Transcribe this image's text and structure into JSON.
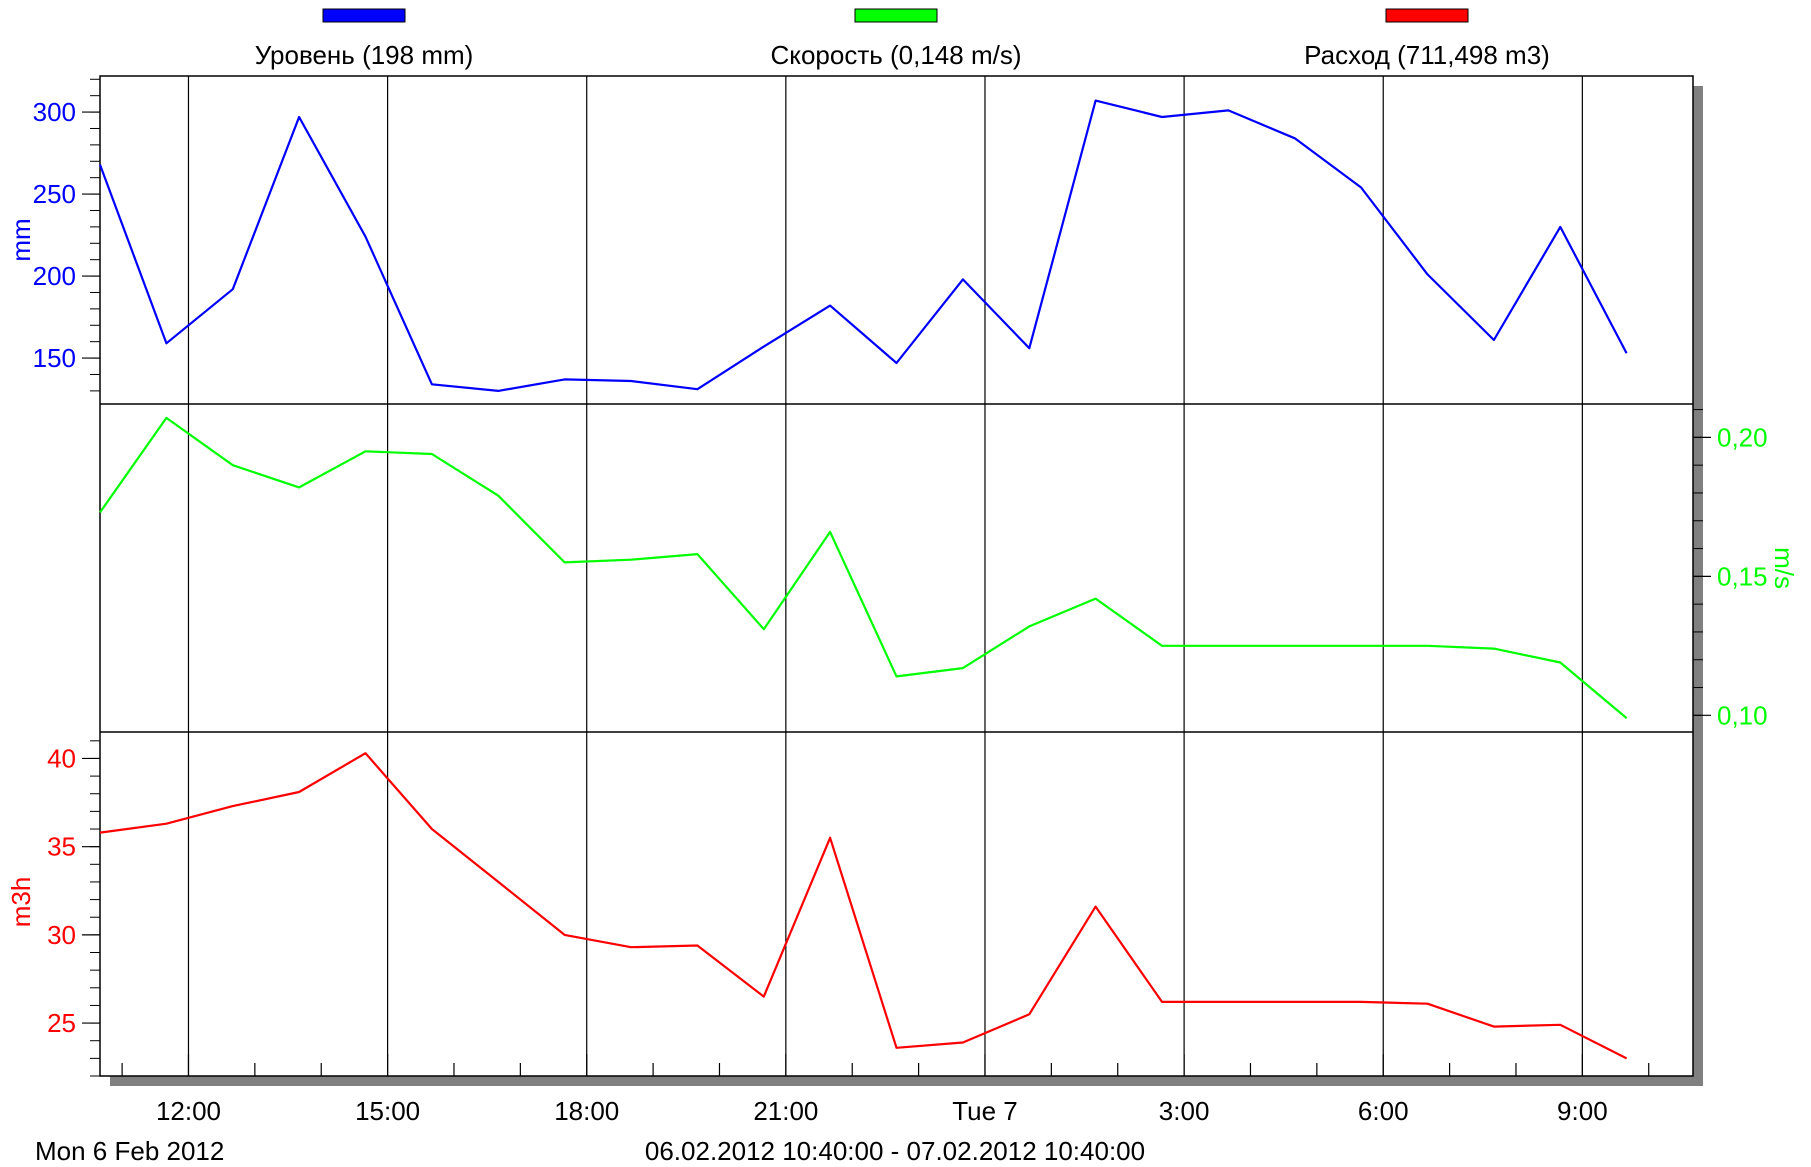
{
  "chart_data": {
    "type": "line",
    "time_range": "06.02.2012 10:40:00 - 07.02.2012 10:40:00",
    "date_label": "Mon 6 Feb 2012",
    "x_ticks": [
      "12:00",
      "15:00",
      "18:00",
      "21:00",
      "Tue 7",
      "3:00",
      "6:00",
      "9:00"
    ],
    "x_tick_hours": [
      12,
      15,
      18,
      21,
      24,
      27,
      30,
      33
    ],
    "xlim": [
      10.667,
      34.667
    ],
    "grid": true,
    "x_hours": [
      10.667,
      11.667,
      12.667,
      13.667,
      14.667,
      15.667,
      16.667,
      17.667,
      18.667,
      19.667,
      20.667,
      21.667,
      22.667,
      23.667,
      24.667,
      25.667,
      26.667,
      27.667,
      28.667,
      29.667,
      30.667,
      31.667,
      32.667,
      33.667
    ],
    "legend": [
      {
        "label": "Уровень (198 mm)",
        "color": "#0000ff"
      },
      {
        "label": "Скорость (0,148 m/s)",
        "color": "#00ff00"
      },
      {
        "label": "Расход (711,498 m3)",
        "color": "#ff0000"
      }
    ],
    "panels": [
      {
        "name": "Уровень",
        "unit": "mm",
        "axis_side": "left",
        "color": "#0000ff",
        "ylim": [
          122,
          322
        ],
        "ticks": [
          150,
          200,
          250,
          300
        ],
        "tick_labels": [
          "150",
          "200",
          "250",
          "300"
        ],
        "values": [
          268,
          159,
          192,
          297,
          224,
          134,
          130,
          137,
          136,
          131,
          157,
          182,
          147,
          198,
          156,
          307,
          297,
          301,
          284,
          254,
          201,
          161,
          230,
          153
        ]
      },
      {
        "name": "Скорость",
        "unit": "m/s",
        "axis_side": "right",
        "color": "#00ff00",
        "ylim": [
          0.094,
          0.212
        ],
        "ticks": [
          0.1,
          0.15,
          0.2
        ],
        "tick_labels": [
          "0,10",
          "0,15",
          "0,20"
        ],
        "values": [
          0.173,
          0.207,
          0.19,
          0.182,
          0.195,
          0.194,
          0.179,
          0.155,
          0.156,
          0.158,
          0.131,
          0.166,
          0.114,
          0.117,
          0.132,
          0.142,
          0.125,
          0.125,
          0.125,
          0.125,
          0.125,
          0.124,
          0.119,
          0.099
        ]
      },
      {
        "name": "Расход",
        "unit": "m3h",
        "axis_side": "left",
        "color": "#ff0000",
        "ylim": [
          22,
          41.5
        ],
        "ticks": [
          25,
          30,
          35,
          40
        ],
        "tick_labels": [
          "25",
          "30",
          "35",
          "40"
        ],
        "values": [
          35.8,
          36.3,
          37.3,
          38.1,
          40.3,
          36.0,
          33.0,
          30.0,
          29.3,
          29.4,
          26.5,
          35.5,
          23.6,
          23.9,
          25.5,
          31.6,
          26.2,
          26.2,
          26.2,
          26.2,
          26.1,
          24.8,
          24.9,
          23.0
        ]
      }
    ]
  }
}
